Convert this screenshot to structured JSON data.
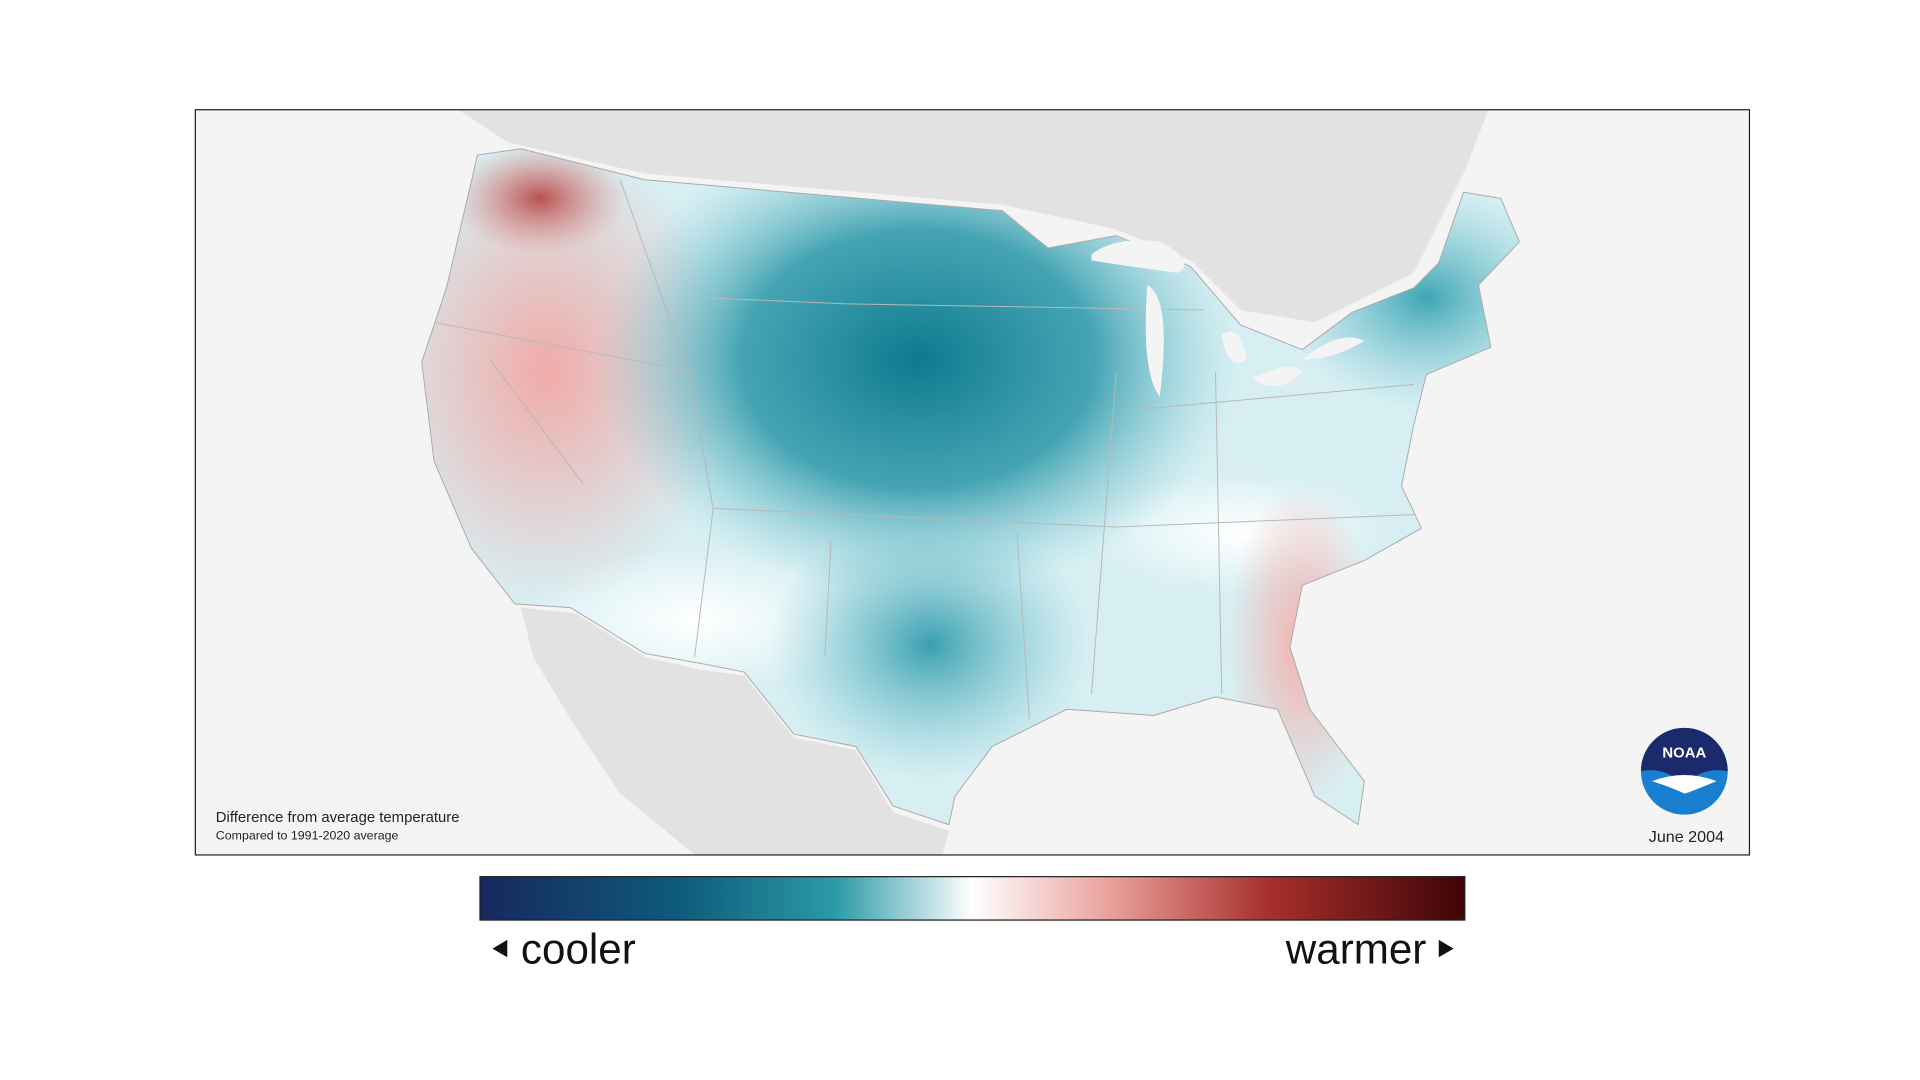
{
  "map": {
    "caption": {
      "title": "Difference from average temperature",
      "subtitle": "Compared to 1991-2020 average"
    },
    "date": "June 2004",
    "logo": {
      "text": "NOAA"
    },
    "legend": {
      "low_label": "cooler",
      "high_label": "warmer"
    }
  }
}
